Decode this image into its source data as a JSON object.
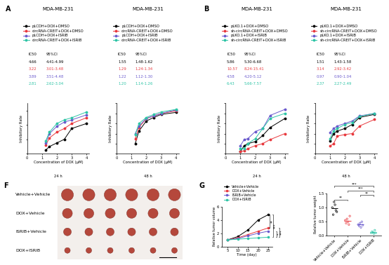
{
  "chart_data": [
    {
      "type": "line",
      "panel": "A",
      "title": "MDA-MB-231",
      "time_label": "24 h",
      "x_label": "Concentration of DOX (μM)",
      "y_label": "Inhibitory Rate",
      "x": [
        1.25,
        1.5,
        2,
        2.5,
        3,
        4
      ],
      "xlim": [
        0,
        4.2
      ],
      "xticks": [
        0,
        1,
        2,
        3,
        4
      ],
      "ylim": [
        0,
        70
      ],
      "yticks": [
        0,
        20,
        40,
        60
      ],
      "tick_labels": "x",
      "legend": "upper left",
      "ic50_table": {
        "header": [
          "IC50",
          "95%CI"
        ],
        "rows": [
          [
            "4.66",
            "4.41-4.99"
          ],
          [
            "3.22",
            "3.01-3.48"
          ],
          [
            "3.89",
            "3.51-4.48"
          ],
          [
            "2.81",
            "2.62-3.04"
          ]
        ]
      },
      "series": [
        {
          "name": "pLCDH+DOX+DMSO",
          "color": "#000000",
          "marker": "o",
          "values": [
            5,
            10,
            15,
            20,
            35,
            42
          ]
        },
        {
          "name": "circRNA-CREIT+DOX+DMSO",
          "color": "#e8383d",
          "marker": "o",
          "values": [
            12,
            22,
            30,
            35,
            42,
            50
          ]
        },
        {
          "name": "pLCDH+DOX+ISRIB",
          "color": "#6a5acd",
          "marker": "o",
          "values": [
            15,
            28,
            38,
            44,
            47,
            54
          ]
        },
        {
          "name": "circRNA-CREIT+DOX+ISRIB",
          "color": "#2ec4a6",
          "marker": "o",
          "values": [
            18,
            30,
            42,
            47,
            50,
            58
          ]
        }
      ]
    },
    {
      "type": "line",
      "title": "MDA-MB-231",
      "time_label": "48 h",
      "x_label": "Concentration of DOX (μM)",
      "y_label": "Inhibitory Rate",
      "x": [
        1.25,
        1.5,
        2,
        2.5,
        3,
        4
      ],
      "xlim": [
        0,
        4.2
      ],
      "xticks": [
        0,
        1,
        2,
        3,
        4
      ],
      "ylim": [
        0,
        100
      ],
      "yticks": [
        0,
        20,
        40,
        60,
        80,
        100
      ],
      "tick_labels": "x",
      "legend": "upper left",
      "ic50_table": {
        "header": [
          "IC50",
          "95%CI"
        ],
        "rows": [
          [
            "1.55",
            "1.48-1.62"
          ],
          [
            "1.29",
            "1.24-1.34"
          ],
          [
            "1.22",
            "1.12-1.30"
          ],
          [
            "1.20",
            "1.14-1.26"
          ]
        ]
      },
      "series": [
        {
          "name": "pLCDH+DOX+DMSO",
          "color": "#000000",
          "marker": "o",
          "values": [
            20,
            45,
            65,
            72,
            78,
            82
          ]
        },
        {
          "name": "circRNA-CREIT+DOX+DMSO",
          "color": "#e8383d",
          "marker": "o",
          "values": [
            30,
            52,
            70,
            75,
            80,
            85
          ]
        },
        {
          "name": "pLCDH+DOX+ISRIB",
          "color": "#6a5acd",
          "marker": "o",
          "values": [
            40,
            55,
            70,
            75,
            80,
            87
          ]
        },
        {
          "name": "circRNA-CREIT+DOX+ISRIB",
          "color": "#2ec4a6",
          "marker": "o",
          "values": [
            38,
            60,
            72,
            78,
            83,
            88
          ]
        }
      ]
    },
    {
      "type": "line",
      "panel": "B",
      "title": "MDA-MB-231",
      "time_label": "24 h",
      "x_label": "Concentration of DOX (μM)",
      "y_label": "Inhibitory Rate",
      "x": [
        1,
        1.25,
        1.5,
        2,
        2.5,
        3,
        4
      ],
      "xlim": [
        0,
        4.2
      ],
      "xticks": [
        0,
        1,
        2,
        3,
        4
      ],
      "ylim": [
        0,
        50
      ],
      "yticks": [
        0,
        10,
        20,
        30,
        40,
        50
      ],
      "tick_labels": "x",
      "legend": "upper left",
      "ic50_table": {
        "header": [
          "IC50",
          "95%CI"
        ],
        "rows": [
          [
            "5.86",
            "5.30-6.68"
          ],
          [
            "10.57",
            "8.24-15.41"
          ],
          [
            "4.58",
            "4.20-5.12"
          ],
          [
            "6.43",
            "5.66-7.57"
          ]
        ]
      },
      "series": [
        {
          "name": "pLKO.1+DOX+DMSO",
          "color": "#000000",
          "marker": "o",
          "values": [
            2,
            8,
            10,
            12,
            18,
            26,
            35
          ]
        },
        {
          "name": "sh-circRNA-CREIT+DOX+DMSO",
          "color": "#e8383d",
          "marker": "o",
          "values": [
            2,
            3,
            5,
            8,
            10,
            14,
            20
          ]
        },
        {
          "name": "pLKO.1+DOX+ISRIB",
          "color": "#6a5acd",
          "marker": "o",
          "values": [
            8,
            14,
            15,
            22,
            25,
            38,
            44
          ]
        },
        {
          "name": "sh-circRNA-CREIT+DOX+ISRIB",
          "color": "#2ec4a6",
          "marker": "o",
          "values": [
            5,
            5,
            10,
            15,
            25,
            35,
            40
          ]
        }
      ]
    },
    {
      "type": "line",
      "title": "MDA-MB-231",
      "time_label": "48 h",
      "x_label": "Concentration of DOX (μM)",
      "y_label": "Inhibitory Rate",
      "x": [
        1,
        1.25,
        1.5,
        2,
        2.5,
        3,
        4
      ],
      "xlim": [
        0,
        4.2
      ],
      "xticks": [
        0,
        1,
        2,
        3,
        4
      ],
      "ylim": [
        0,
        100
      ],
      "yticks": [
        0,
        20,
        40,
        60,
        80,
        100
      ],
      "tick_labels": "x",
      "legend": "upper left",
      "ic50_table": {
        "header": [
          "IC50",
          "95%CI"
        ],
        "rows": [
          [
            "1.51",
            "1.43-1.58"
          ],
          [
            "3.14",
            "2.92-3.42"
          ],
          [
            "0.97",
            "0.90-1.04"
          ],
          [
            "2.37",
            "2.27-2.49"
          ]
        ]
      },
      "series": [
        {
          "name": "pLKO.1+DOX+DMSO",
          "color": "#000000",
          "marker": "o",
          "values": [
            25,
            40,
            45,
            50,
            58,
            72,
            78
          ]
        },
        {
          "name": "sh-circRNA-CREIT+DOX+DMSO",
          "color": "#e8383d",
          "marker": "o",
          "values": [
            15,
            20,
            35,
            38,
            40,
            55,
            68
          ]
        },
        {
          "name": "pLKO.1+DOX+ISRIB",
          "color": "#6a5acd",
          "marker": "o",
          "values": [
            42,
            50,
            55,
            60,
            65,
            75,
            80
          ]
        },
        {
          "name": "sh-circRNA-CREIT+DOX+ISRIB",
          "color": "#2ec4a6",
          "marker": "o",
          "values": [
            30,
            45,
            50,
            58,
            62,
            74,
            80
          ]
        }
      ]
    },
    {
      "type": "line",
      "panel": "G",
      "x_label": "Time (day)",
      "y_label": "Relative tumor volume",
      "x": [
        5,
        10,
        15,
        20,
        25
      ],
      "xlim": [
        2,
        27
      ],
      "xticks": [
        5,
        10,
        15,
        20,
        25
      ],
      "ylim": [
        0,
        6
      ],
      "yticks": [
        0,
        2,
        4,
        6
      ],
      "legend": "upper left",
      "series": [
        {
          "name": "Vehicle+Vehicle",
          "color": "#000000",
          "marker": "o",
          "values": [
            1,
            1.5,
            2.5,
            4,
            4.8
          ]
        },
        {
          "name": "DOX+Vehicle",
          "color": "#e8383d",
          "marker": "o",
          "values": [
            1,
            1.3,
            1.8,
            2.3,
            2.8
          ]
        },
        {
          "name": "ISRIB+Vehicle",
          "color": "#6a5acd",
          "marker": "o",
          "values": [
            1,
            1.2,
            1.6,
            2.0,
            2.3
          ]
        },
        {
          "name": "DOX+ISRIB",
          "color": "#2ec4a6",
          "marker": "o",
          "values": [
            1,
            1.1,
            1.2,
            1.3,
            1.4
          ]
        }
      ],
      "significance": [
        {
          "pair": [
            0,
            1
          ],
          "text": "**"
        },
        {
          "pair": [
            0,
            3
          ],
          "text": "***"
        },
        {
          "pair": [
            2,
            3
          ],
          "text": "*"
        },
        {
          "pair": [
            1,
            3
          ],
          "text": "***"
        }
      ]
    },
    {
      "type": "dot",
      "y_label": "Relative tumor weight",
      "categories": [
        "Vehicle+Vehicle",
        "DOX+Vehicle",
        "ISRIB+Vehicle",
        "DOX+ISRIB"
      ],
      "colors": [
        "#000000",
        "#e8383d",
        "#6a5acd",
        "#2ec4a6"
      ],
      "values": [
        [
          1.0,
          0.75,
          1.2,
          1.1,
          0.9,
          0.85
        ],
        [
          0.55,
          0.45,
          0.6,
          0.5,
          0.4,
          0.7
        ],
        [
          0.4,
          0.35,
          0.45,
          0.3,
          0.5,
          0.38
        ],
        [
          0.1,
          0.15,
          0.12,
          0.08,
          0.2,
          0.1
        ]
      ],
      "means": [
        0.97,
        0.53,
        0.4,
        0.13
      ],
      "ylim": [
        0,
        1.5
      ],
      "yticks": [
        {
          "value": 0,
          "label": "0.0"
        },
        {
          "value": 0.5,
          "label": "0.5"
        },
        {
          "value": 1.0,
          "label": "1.0"
        },
        {
          "value": 1.5,
          "label": "1.5"
        }
      ],
      "significance": [
        {
          "pair": [
            0,
            1
          ],
          "text": "**"
        },
        {
          "pair": [
            2,
            3
          ],
          "text": "**"
        },
        {
          "pair": [
            1,
            3
          ],
          "text": "***"
        },
        {
          "pair": [
            0,
            3
          ],
          "text": "***"
        }
      ]
    }
  ],
  "photo": {
    "panel": "F",
    "rows": [
      "Vehicle+Vehicle",
      "DOX+Vehicle",
      "ISRIB+Vehicle",
      "DOX+ISRIB"
    ],
    "tumors_per_row": [
      6,
      6,
      6,
      6
    ]
  }
}
